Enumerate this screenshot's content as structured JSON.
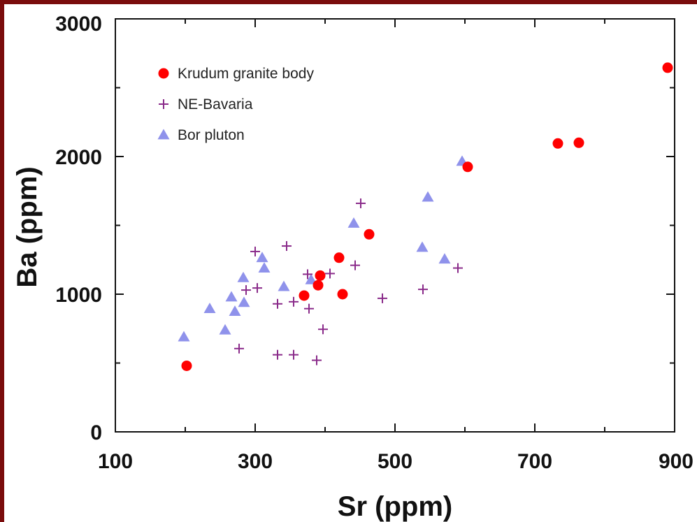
{
  "chart_data": {
    "type": "scatter",
    "xlabel": "Sr (ppm)",
    "ylabel": "Ba (ppm)",
    "xlim": [
      100,
      900
    ],
    "ylim": [
      0,
      3000
    ],
    "x_ticks": [
      100,
      300,
      500,
      700,
      900
    ],
    "y_ticks": [
      0,
      1000,
      2000,
      3000
    ],
    "x_tick_labels": [
      "100",
      "300",
      "500",
      "700",
      "900"
    ],
    "y_tick_labels": [
      "0",
      "1000",
      "2000",
      "3000"
    ],
    "grid": false,
    "legend_position": "top-left",
    "series": [
      {
        "name": "Krudum granite body",
        "marker": "circle",
        "color": "#ff0000",
        "points": [
          [
            202,
            480
          ],
          [
            370,
            990
          ],
          [
            390,
            1065
          ],
          [
            393,
            1135
          ],
          [
            420,
            1265
          ],
          [
            425,
            1000
          ],
          [
            463,
            1435
          ],
          [
            604,
            1925
          ],
          [
            733,
            2095
          ],
          [
            763,
            2100
          ],
          [
            890,
            2645
          ]
        ]
      },
      {
        "name": "NE-Bavaria",
        "marker": "plus",
        "color": "#8a2b8a",
        "points": [
          [
            277,
            605
          ],
          [
            287,
            1030
          ],
          [
            300,
            1310
          ],
          [
            303,
            1045
          ],
          [
            332,
            930
          ],
          [
            332,
            560
          ],
          [
            345,
            1350
          ],
          [
            355,
            945
          ],
          [
            355,
            560
          ],
          [
            375,
            1145
          ],
          [
            377,
            895
          ],
          [
            388,
            520
          ],
          [
            397,
            745
          ],
          [
            407,
            1150
          ],
          [
            443,
            1210
          ],
          [
            451,
            1660
          ],
          [
            482,
            970
          ],
          [
            540,
            1035
          ],
          [
            590,
            1190
          ]
        ]
      },
      {
        "name": "Bor pluton",
        "marker": "triangle",
        "color": "#7b7fe8",
        "points": [
          [
            198,
            690
          ],
          [
            235,
            895
          ],
          [
            257,
            740
          ],
          [
            266,
            980
          ],
          [
            271,
            875
          ],
          [
            283,
            1120
          ],
          [
            284,
            940
          ],
          [
            310,
            1265
          ],
          [
            313,
            1190
          ],
          [
            341,
            1055
          ],
          [
            380,
            1105
          ],
          [
            441,
            1515
          ],
          [
            539,
            1340
          ],
          [
            547,
            1705
          ],
          [
            571,
            1255
          ],
          [
            596,
            1965
          ]
        ]
      }
    ]
  }
}
